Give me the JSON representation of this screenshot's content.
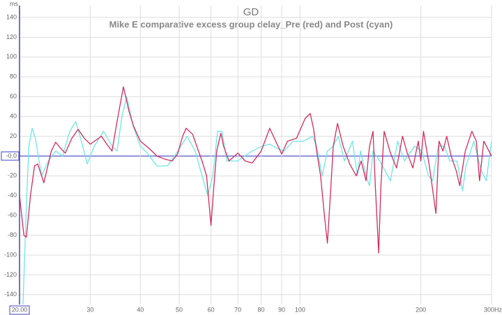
{
  "chart_data": {
    "type": "line",
    "title": "GD",
    "subtitle": "Mike E comparative excess group delay_Pre (red) and Post (cyan)",
    "y_label": "ms",
    "xscale": "log",
    "grid": true,
    "xlim": [
      20,
      300
    ],
    "xticks": [
      {
        "value": 20,
        "label": "20.00"
      },
      30,
      40,
      50,
      60,
      70,
      80,
      90,
      100,
      200,
      {
        "value": 300,
        "label": "300Hz"
      }
    ],
    "ylim": [
      -150,
      152
    ],
    "yticks": [
      -140,
      -120,
      -100,
      -80,
      -60,
      -40,
      -20,
      {
        "value": 0,
        "label": "-0.0"
      },
      20,
      40,
      60,
      80,
      100,
      120,
      140
    ],
    "series": [
      {
        "name": "Pre",
        "color": "#d42a5c",
        "x": [
          20,
          20.5,
          20.8,
          21.3,
          21.8,
          22.2,
          23,
          24,
          24.6,
          25.3,
          26,
          27,
          28,
          29,
          30,
          32,
          33,
          34,
          35,
          36.3,
          37.5,
          38.5,
          40,
          42,
          44,
          46,
          48,
          49.5,
          51,
          52,
          54,
          55.5,
          57,
          58.5,
          60,
          61,
          62,
          63.5,
          64.5,
          66.5,
          70,
          73,
          76,
          80,
          84,
          87,
          90,
          93,
          98,
          103,
          106,
          108,
          110,
          112.5,
          115,
          117,
          119,
          121,
          124,
          128,
          133,
          138,
          142,
          146,
          149,
          152,
          154,
          157,
          159,
          162,
          168,
          174,
          180,
          185,
          191,
          197,
          200,
          203,
          210,
          215,
          218,
          222,
          227,
          232,
          238,
          245,
          250,
          258,
          268,
          275,
          280,
          287,
          300
        ],
        "values": [
          -40,
          -80,
          -82,
          -40,
          -10,
          -8,
          -27,
          5,
          14,
          8,
          3,
          18,
          27,
          18,
          12,
          20,
          12,
          5,
          35,
          70,
          45,
          30,
          15,
          8,
          0,
          -3,
          -5,
          2,
          20,
          28,
          22,
          8,
          -5,
          -20,
          -70,
          -30,
          5,
          23,
          10,
          -5,
          3,
          -5,
          -7,
          5,
          28,
          15,
          2,
          15,
          18,
          38,
          43,
          28,
          5,
          -20,
          -60,
          -88,
          -40,
          10,
          33,
          10,
          -8,
          -20,
          -5,
          -25,
          10,
          25,
          -30,
          -98,
          -30,
          25,
          3,
          -12,
          20,
          3,
          -12,
          15,
          -5,
          25,
          -10,
          -40,
          -58,
          15,
          5,
          20,
          0,
          -15,
          -30,
          5,
          25,
          15,
          -25,
          15,
          0
        ]
      },
      {
        "name": "Post",
        "color": "#6ee6e6",
        "x": [
          20.4,
          20.8,
          21.1,
          21.5,
          21.9,
          22.7,
          23.6,
          24.6,
          25.6,
          26.7,
          27.6,
          28.3,
          29.5,
          30.7,
          32.4,
          34,
          35,
          36,
          37,
          38.4,
          40,
          41.6,
          44,
          46.7,
          49.6,
          52.3,
          54.8,
          57,
          58.9,
          60.6,
          62.3,
          63.9,
          65.7,
          69.9,
          75.9,
          80.5,
          84,
          87.5,
          91.3,
          96,
          102,
          107.4,
          110,
          113.5,
          117,
          121,
          124.5,
          129,
          135,
          139,
          141.5,
          146,
          149,
          152,
          158,
          168,
          175,
          182,
          193,
          201,
          209,
          214,
          221,
          229,
          236,
          246,
          254,
          259,
          271,
          283,
          291,
          300
        ],
        "values": [
          -150,
          -50,
          10,
          28,
          18,
          -20,
          -5,
          5,
          0,
          25,
          35,
          20,
          -8,
          10,
          25,
          10,
          5,
          40,
          60,
          30,
          10,
          3,
          -10,
          -10,
          5,
          20,
          5,
          -20,
          -40,
          -20,
          25,
          25,
          -5,
          -5,
          5,
          10,
          12,
          8,
          5,
          15,
          15,
          20,
          10,
          -20,
          5,
          10,
          20,
          -5,
          15,
          -20,
          5,
          -20,
          -30,
          5,
          -5,
          -25,
          15,
          -5,
          10,
          5,
          -20,
          -25,
          10,
          10,
          -5,
          -5,
          -35,
          -10,
          15,
          -15,
          -25,
          15
        ]
      }
    ]
  }
}
